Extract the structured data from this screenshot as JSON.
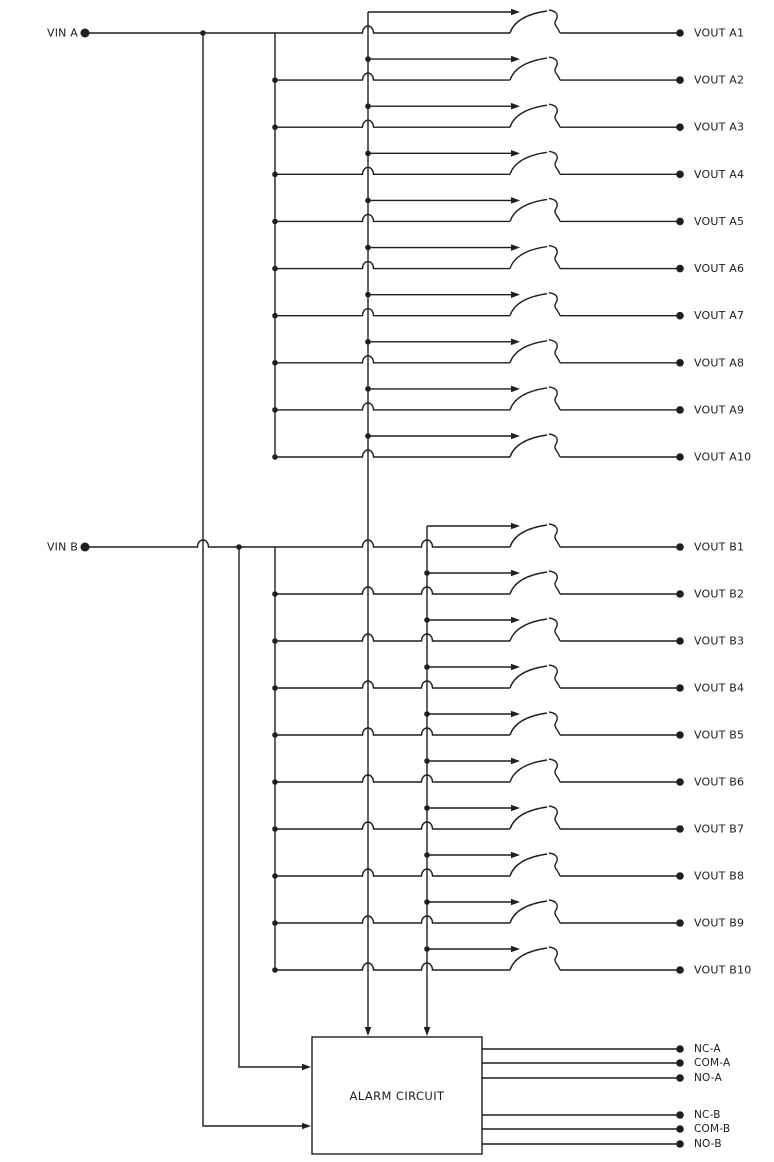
{
  "diagram": {
    "background_color": "#ffffff",
    "line_color": "#1f1f1f",
    "sections": [
      {
        "input_label": "VIN A",
        "channels": [
          "VOUT A1",
          "VOUT A2",
          "VOUT A3",
          "VOUT A4",
          "VOUT A5",
          "VOUT A6",
          "VOUT A7",
          "VOUT A8",
          "VOUT A9",
          "VOUT A10"
        ]
      },
      {
        "input_label": "VIN B",
        "channels": [
          "VOUT B1",
          "VOUT B2",
          "VOUT B3",
          "VOUT B4",
          "VOUT B5",
          "VOUT B6",
          "VOUT B7",
          "VOUT B8",
          "VOUT B9",
          "VOUT B10"
        ]
      }
    ],
    "alarm_circuit": {
      "label": "ALARM CIRCUIT",
      "relay_outputs": [
        "NC-A",
        "COM-A",
        "NO-A",
        "NC-B",
        "COM-B",
        "NO-B"
      ]
    }
  }
}
